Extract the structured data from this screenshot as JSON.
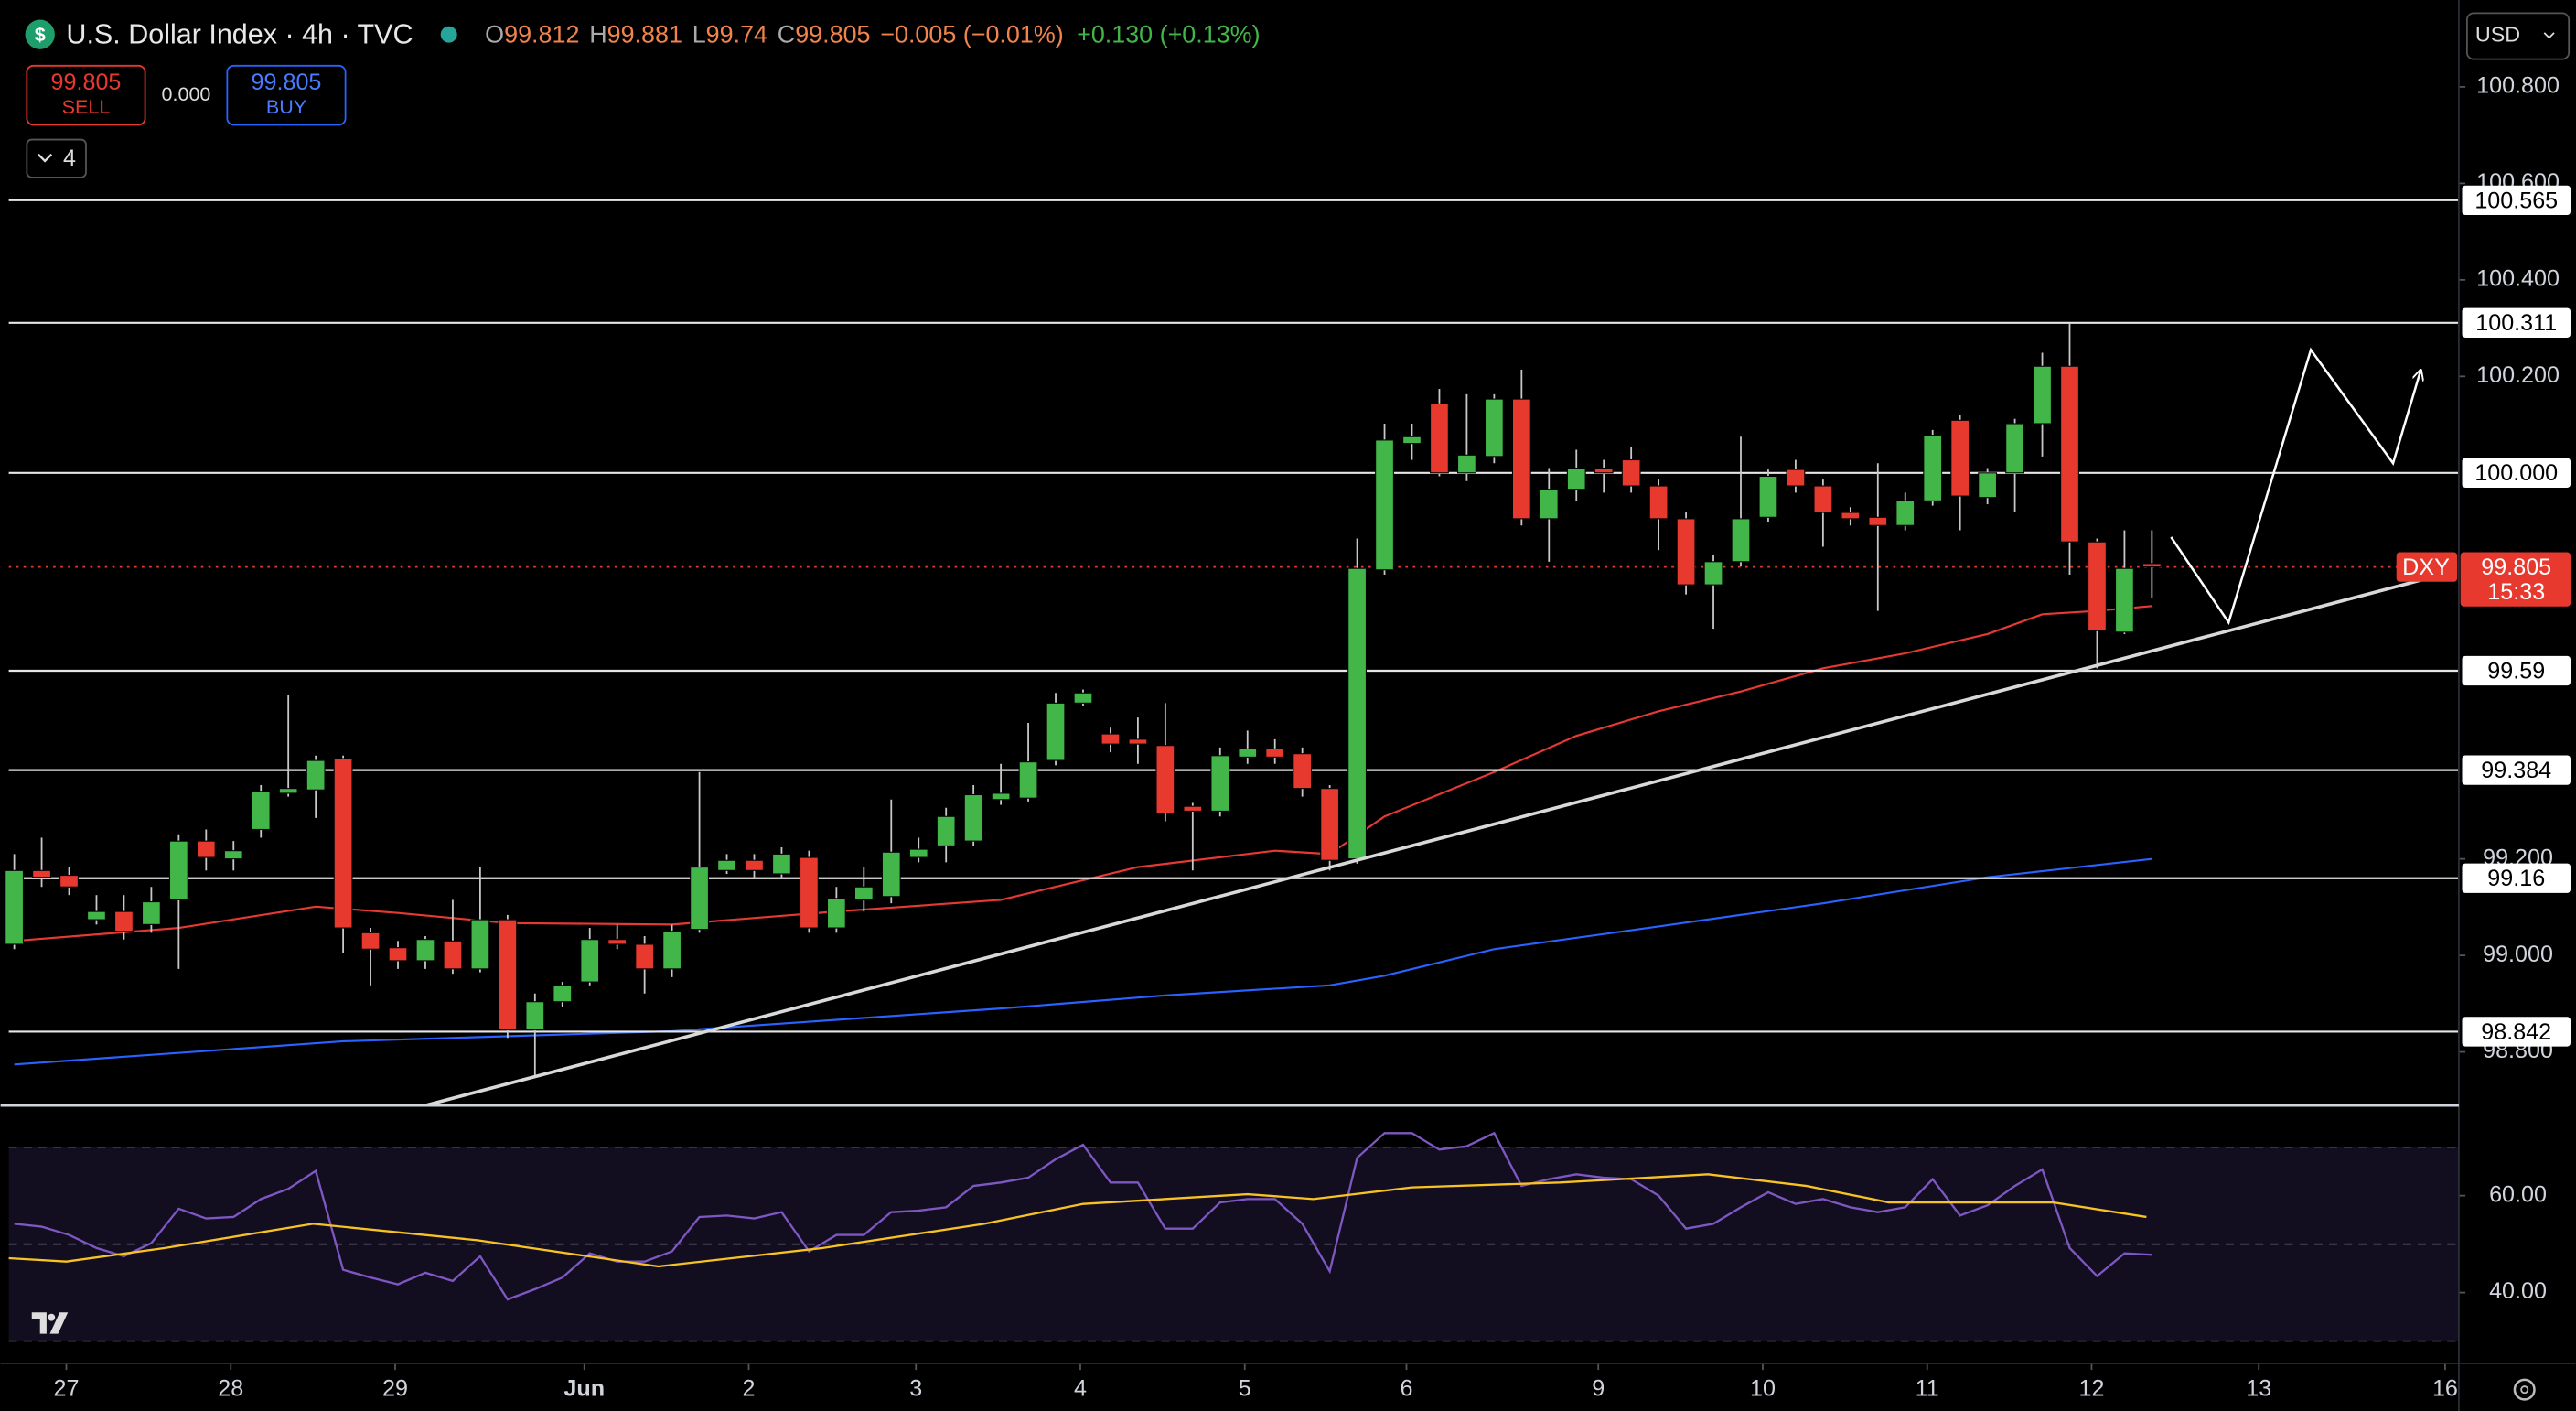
{
  "header": {
    "open_label": "O",
    "open": 99.812,
    "high_label": "H",
    "high": 99.881,
    "low_label": "L",
    "low": 99.74,
    "close_label": "C",
    "close": 99.805,
    "change": "−0.005 (−0.01%)",
    "change_ext": "+0.130 (+0.13%)",
    "indicators": "4",
    "currency": "USD"
  },
  "trade": {
    "sell_price": 99.805,
    "sell": "SELL",
    "spread": "0.000",
    "buy_price": 99.805,
    "buy": "BUY"
  },
  "chart_data": [
    {
      "type": "candlestick",
      "title": "U.S. Dollar Index · 4h · TVC",
      "symbol": "DXY",
      "last_price": 99.805,
      "countdown": "15:33",
      "up_color": "#43b649",
      "down_color": "#e8392f",
      "open": [
        99.023,
        99.176,
        99.166,
        99.074,
        99.091,
        99.064,
        99.115,
        99.237,
        99.2,
        99.261,
        99.336,
        99.343,
        99.408,
        99.047,
        99.016,
        98.989,
        99.03,
        98.972,
        99.074,
        98.846,
        98.904,
        98.945,
        99.033,
        99.023,
        98.972,
        99.054,
        99.176,
        99.197,
        99.169,
        99.203,
        99.057,
        99.115,
        99.122,
        99.203,
        99.227,
        99.237,
        99.323,
        99.326,
        99.404,
        99.523,
        99.459,
        99.448,
        99.435,
        99.309,
        99.299,
        99.411,
        99.428,
        99.418,
        99.346,
        99.2,
        99.799,
        100.061,
        100.143,
        100.0,
        100.034,
        100.153,
        99.905,
        99.966,
        100.01,
        100.027,
        99.973,
        99.905,
        99.768,
        99.816,
        99.908,
        100.007,
        99.973,
        99.918,
        99.908,
        99.891,
        99.942,
        100.109,
        99.949,
        100.0,
        100.102,
        100.221,
        99.857,
        99.67,
        99.812
      ],
      "high": [
        99.21,
        99.244,
        99.183,
        99.125,
        99.125,
        99.142,
        99.251,
        99.261,
        99.237,
        99.353,
        99.54,
        99.414,
        99.414,
        99.057,
        99.03,
        99.04,
        99.115,
        99.183,
        99.084,
        98.921,
        98.945,
        99.057,
        99.064,
        99.04,
        99.064,
        99.38,
        99.21,
        99.21,
        99.224,
        99.217,
        99.142,
        99.183,
        99.323,
        99.244,
        99.306,
        99.353,
        99.397,
        99.482,
        99.544,
        99.551,
        99.472,
        99.493,
        99.523,
        99.316,
        99.431,
        99.466,
        99.448,
        99.431,
        99.353,
        99.864,
        100.102,
        100.102,
        100.174,
        100.163,
        100.163,
        100.214,
        100.01,
        100.048,
        100.027,
        100.054,
        99.986,
        99.918,
        99.83,
        100.075,
        100.007,
        100.027,
        99.986,
        99.929,
        100.02,
        99.959,
        100.089,
        100.119,
        100.01,
        100.112,
        100.249,
        100.31,
        99.864,
        99.881,
        99.881
      ],
      "low": [
        99.013,
        99.142,
        99.125,
        99.064,
        99.033,
        99.047,
        98.972,
        99.176,
        99.176,
        99.244,
        99.329,
        99.285,
        99.006,
        98.938,
        98.972,
        98.972,
        98.962,
        98.965,
        98.829,
        98.751,
        98.894,
        98.938,
        99.013,
        98.921,
        98.955,
        99.047,
        99.169,
        99.159,
        99.159,
        99.047,
        99.047,
        99.091,
        99.108,
        99.193,
        99.193,
        99.227,
        99.312,
        99.319,
        99.394,
        99.517,
        99.421,
        99.397,
        99.278,
        99.176,
        99.288,
        99.397,
        99.397,
        99.329,
        99.176,
        99.19,
        99.789,
        100.027,
        99.993,
        99.983,
        100.02,
        99.891,
        99.816,
        99.942,
        99.959,
        99.959,
        99.84,
        99.748,
        99.677,
        99.806,
        99.898,
        99.959,
        99.847,
        99.891,
        99.714,
        99.881,
        99.932,
        99.881,
        99.935,
        99.918,
        100.034,
        99.789,
        99.595,
        99.666,
        99.74
      ],
      "close": [
        99.176,
        99.162,
        99.142,
        99.091,
        99.05,
        99.111,
        99.237,
        99.203,
        99.217,
        99.34,
        99.346,
        99.404,
        99.057,
        99.013,
        98.989,
        99.033,
        98.972,
        99.074,
        98.846,
        98.904,
        98.938,
        99.033,
        99.023,
        98.972,
        99.05,
        99.183,
        99.197,
        99.176,
        99.21,
        99.057,
        99.118,
        99.142,
        99.214,
        99.22,
        99.288,
        99.333,
        99.336,
        99.401,
        99.523,
        99.544,
        99.438,
        99.438,
        99.295,
        99.299,
        99.414,
        99.428,
        99.411,
        99.346,
        99.197,
        99.802,
        100.068,
        100.075,
        100.0,
        100.037,
        100.153,
        99.905,
        99.966,
        100.01,
        100.0,
        99.973,
        99.905,
        99.768,
        99.816,
        99.905,
        99.993,
        99.973,
        99.918,
        99.905,
        99.891,
        99.942,
        100.078,
        99.952,
        100.0,
        100.102,
        100.221,
        99.857,
        99.673,
        99.802,
        99.805
      ],
      "ma": [
        {
          "color": "#e53935",
          "x": [
            0,
            6,
            11,
            14,
            18,
            24,
            30,
            36,
            41,
            46,
            48,
            50,
            54,
            57,
            60,
            63,
            66,
            69,
            72,
            74,
            76,
            78
          ],
          "values": [
            99.03,
            99.057,
            99.101,
            99.088,
            99.067,
            99.064,
            99.091,
            99.115,
            99.183,
            99.217,
            99.21,
            99.288,
            99.38,
            99.455,
            99.506,
            99.547,
            99.595,
            99.626,
            99.666,
            99.707,
            99.714,
            99.724
          ]
        },
        {
          "color": "#2962ff",
          "x": [
            0,
            12,
            24,
            36,
            42,
            48,
            50,
            54,
            60,
            66,
            72,
            78
          ],
          "values": [
            98.774,
            98.822,
            98.843,
            98.89,
            98.917,
            98.938,
            98.958,
            99.013,
            99.06,
            99.108,
            99.162,
            99.2
          ]
        }
      ],
      "trendline": {
        "color": "#d9d9d9",
        "x": [
          15,
          88.1
        ],
        "values": [
          98.689,
          99.782
        ]
      },
      "projection": {
        "color": "#ffffff",
        "x": [
          78.7,
          80.8,
          83.8,
          86.8,
          87.8
        ],
        "values": [
          99.867,
          99.69,
          100.255,
          100.02,
          100.211
        ]
      },
      "levels": [
        100.565,
        100.311,
        {
          "value": 100,
          "label": "100.000"
        },
        99.59,
        99.384,
        99.16,
        98.842
      ],
      "xlim": [
        -0.2,
        89.2
      ],
      "ylim": [
        98.689,
        100.963
      ],
      "yticks": [
        {
          "value": 98.8,
          "label": "98.800"
        },
        {
          "value": 99.0,
          "label": "99.000"
        },
        {
          "value": 99.2,
          "label": "99.200"
        },
        {
          "value": 100.2,
          "label": "100.200"
        },
        {
          "value": 100.4,
          "label": "100.400"
        },
        {
          "value": 100.6,
          "label": "100.600"
        },
        {
          "value": 100.8,
          "label": "100.800"
        }
      ]
    },
    {
      "type": "line",
      "series": [
        {
          "color": "#7e57c2",
          "values": [
            54.2,
            53.6,
            51.9,
            49.2,
            47.5,
            50.2,
            57.3,
            55.3,
            55.6,
            59.3,
            61.4,
            65.1,
            44.7,
            43.1,
            41.7,
            44.1,
            42.4,
            47.5,
            38.6,
            40.7,
            43.1,
            48.1,
            46.4,
            46.4,
            48.5,
            55.6,
            55.9,
            55.3,
            56.6,
            48.5,
            51.9,
            51.9,
            56.6,
            56.9,
            57.6,
            62.0,
            62.7,
            63.7,
            67.5,
            70.5,
            62.7,
            62.7,
            53.2,
            53.2,
            58.6,
            59.3,
            59.3,
            54.2,
            44.4,
            67.8,
            72.9,
            72.9,
            69.5,
            70.2,
            72.9,
            62.0,
            63.4,
            64.4,
            63.7,
            63.4,
            60.0,
            53.2,
            54.2,
            57.6,
            60.7,
            58.3,
            59.3,
            57.6,
            56.6,
            57.6,
            63.4,
            55.9,
            58.0,
            62.0,
            65.4,
            49.2,
            43.4,
            48.1,
            47.8
          ]
        },
        {
          "color": "#f7c324",
          "x": [
            -0.2,
            1.9,
            5.5,
            10.9,
            16.9,
            23.5,
            29.5,
            35.4,
            39.0,
            45.0,
            47.4,
            51.0,
            56.4,
            61.8,
            65.4,
            68.4,
            74.4,
            77.8
          ],
          "values": [
            47.1,
            46.4,
            49.2,
            54.2,
            50.8,
            45.4,
            49.2,
            54.2,
            58.3,
            60.3,
            59.3,
            61.7,
            62.7,
            64.4,
            62.0,
            58.6,
            58.6,
            55.6
          ]
        }
      ],
      "levels": [
        70,
        50,
        30
      ],
      "xlim": [
        -0.2,
        89.2
      ],
      "ylim": [
        25.4,
        78.6
      ],
      "yticks": [
        {
          "value": 60,
          "label": "60.00"
        },
        {
          "value": 40,
          "label": "40.00"
        }
      ],
      "xticks": [
        {
          "value": 1.9,
          "label": "27"
        },
        {
          "value": 7.9,
          "label": "28"
        },
        {
          "value": 13.9,
          "label": "29"
        },
        {
          "value": 20.8,
          "label": "Jun"
        },
        {
          "value": 26.8,
          "label": "2"
        },
        {
          "value": 32.9,
          "label": "3"
        },
        {
          "value": 38.9,
          "label": "4"
        },
        {
          "value": 44.9,
          "label": "5"
        },
        {
          "value": 50.8,
          "label": "6"
        },
        {
          "value": 57.8,
          "label": "9"
        },
        {
          "value": 63.8,
          "label": "10"
        },
        {
          "value": 69.8,
          "label": "11"
        },
        {
          "value": 75.8,
          "label": "12"
        },
        {
          "value": 81.9,
          "label": "13"
        },
        {
          "value": 88.7,
          "label": "16"
        }
      ]
    }
  ]
}
